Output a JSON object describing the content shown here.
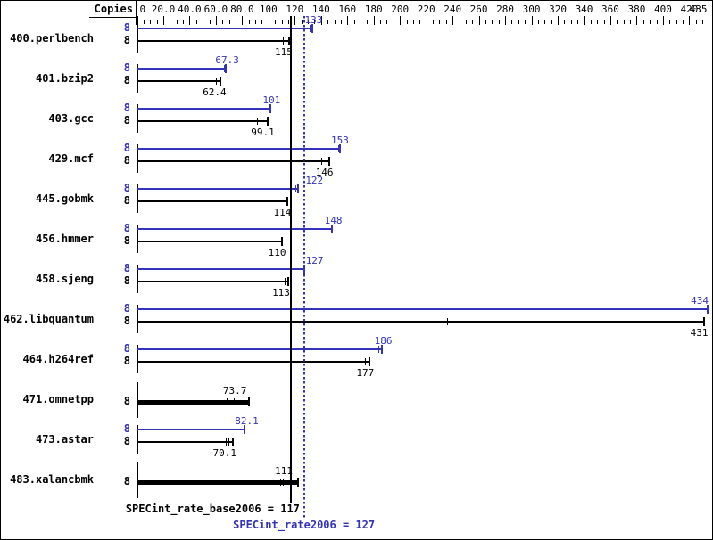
{
  "header": {
    "copies_label": "Copies"
  },
  "axis": {
    "min": 0,
    "max": 435,
    "minor_step": 5,
    "ticks": [
      {
        "v": 0,
        "t": "0"
      },
      {
        "v": 20,
        "t": "20.0"
      },
      {
        "v": 40,
        "t": "40.0"
      },
      {
        "v": 60,
        "t": "60.0"
      },
      {
        "v": 80,
        "t": "80.0"
      },
      {
        "v": 100,
        "t": "100"
      },
      {
        "v": 120,
        "t": "120"
      },
      {
        "v": 140,
        "t": "140"
      },
      {
        "v": 160,
        "t": "160"
      },
      {
        "v": 180,
        "t": "180"
      },
      {
        "v": 200,
        "t": "200"
      },
      {
        "v": 220,
        "t": "220"
      },
      {
        "v": 240,
        "t": "240"
      },
      {
        "v": 260,
        "t": "260"
      },
      {
        "v": 280,
        "t": "280"
      },
      {
        "v": 300,
        "t": "300"
      },
      {
        "v": 320,
        "t": "320"
      },
      {
        "v": 340,
        "t": "340"
      },
      {
        "v": 360,
        "t": "360"
      },
      {
        "v": 380,
        "t": "380"
      },
      {
        "v": 400,
        "t": "400"
      },
      {
        "v": 420,
        "t": "420"
      },
      {
        "v": 435,
        "t": "435"
      }
    ]
  },
  "colors": {
    "peak": "#3333bb",
    "base": "#000000"
  },
  "summary": {
    "base_label": "SPECint_rate_base2006 = 117",
    "base_value": 117,
    "peak_label": "SPECint_rate2006 = 127",
    "peak_value": 127
  },
  "benchmarks": [
    {
      "name": "400.perlbench",
      "bars": [
        {
          "kind": "peak",
          "copies": "8",
          "label": "133",
          "value": 133,
          "end": 133.5,
          "runs": [
            131
          ]
        },
        {
          "kind": "base",
          "copies": "8",
          "label": "115",
          "value": 115,
          "end": 115.5,
          "runs": [
            111
          ]
        }
      ]
    },
    {
      "name": "401.bzip2",
      "bars": [
        {
          "kind": "peak",
          "copies": "8",
          "label": "67.3",
          "value": 67.3,
          "end": 67.8,
          "runs": [
            66.5
          ]
        },
        {
          "kind": "base",
          "copies": "8",
          "label": "62.4",
          "value": 62.4,
          "end": 63.5,
          "runs": [
            60
          ]
        }
      ]
    },
    {
      "name": "403.gcc",
      "bars": [
        {
          "kind": "peak",
          "copies": "8",
          "label": "101",
          "value": 101,
          "end": 101.3,
          "runs": [
            100
          ]
        },
        {
          "kind": "base",
          "copies": "8",
          "label": "99.1",
          "value": 99.1,
          "end": 99.1,
          "runs": [
            91.5
          ]
        }
      ]
    },
    {
      "name": "429.mcf",
      "bars": [
        {
          "kind": "peak",
          "copies": "8",
          "label": "153",
          "value": 153,
          "end": 154.5,
          "runs": [
            151,
            153
          ]
        },
        {
          "kind": "base",
          "copies": "8",
          "label": "146",
          "value": 146,
          "end": 146.3,
          "runs": [
            140
          ]
        }
      ]
    },
    {
      "name": "445.gobmk",
      "bars": [
        {
          "kind": "peak",
          "copies": "8",
          "label": "122",
          "value": 122,
          "end": 122.3,
          "runs": [
            120.5
          ],
          "dx": 17
        },
        {
          "kind": "base",
          "copies": "8",
          "label": "114",
          "value": 114,
          "end": 114.3,
          "runs": []
        }
      ]
    },
    {
      "name": "456.hmmer",
      "bars": [
        {
          "kind": "peak",
          "copies": "8",
          "label": "148",
          "value": 148,
          "end": 148.3,
          "runs": []
        },
        {
          "kind": "base",
          "copies": "8",
          "label": "110",
          "value": 110,
          "end": 110.3,
          "runs": []
        }
      ]
    },
    {
      "name": "458.sjeng",
      "bars": [
        {
          "kind": "peak",
          "copies": "8",
          "label": "127",
          "value": 127,
          "end": 127.3,
          "runs": [],
          "dx": 10
        },
        {
          "kind": "base",
          "copies": "8",
          "label": "113",
          "value": 113,
          "end": 115,
          "runs": [
            112
          ]
        }
      ]
    },
    {
      "name": "462.libquantum",
      "bars": [
        {
          "kind": "peak",
          "copies": "8",
          "label": "434",
          "value": 434,
          "end": 434,
          "runs": []
        },
        {
          "kind": "base",
          "copies": "8",
          "label": "431",
          "value": 431,
          "end": 431,
          "runs": [
            236
          ]
        }
      ]
    },
    {
      "name": "464.h264ref",
      "bars": [
        {
          "kind": "peak",
          "copies": "8",
          "label": "186",
          "value": 186,
          "end": 186.3,
          "runs": [
            183.5
          ]
        },
        {
          "kind": "base",
          "copies": "8",
          "label": "177",
          "value": 177,
          "end": 177,
          "runs": [
            173.5
          ]
        }
      ]
    },
    {
      "name": "471.omnetpp",
      "bars": [
        {
          "kind": "base",
          "copies": "8",
          "label": "73.7",
          "value": 73.7,
          "end": 85,
          "runs": [
            68,
            73.6
          ],
          "thick": true,
          "label_above": true
        }
      ]
    },
    {
      "name": "473.astar",
      "bars": [
        {
          "kind": "peak",
          "copies": "8",
          "label": "82.1",
          "value": 82.1,
          "end": 82.1,
          "runs": []
        },
        {
          "kind": "base",
          "copies": "8",
          "label": "70.1",
          "value": 70.1,
          "end": 73,
          "runs": [
            67.3,
            69.5
          ]
        }
      ]
    },
    {
      "name": "483.xalancbmk",
      "bars": [
        {
          "kind": "base",
          "copies": "8",
          "label": "111",
          "value": 111,
          "end": 122.5,
          "runs": [
            109,
            111
          ],
          "thick": true,
          "label_above": true
        }
      ]
    }
  ],
  "chart_data": {
    "type": "bar",
    "orientation": "horizontal",
    "title": "",
    "xlabel": "",
    "ylabel": "Copies",
    "xlim": [
      0,
      435
    ],
    "grid": false,
    "legend_position": "none",
    "categories": [
      "400.perlbench",
      "401.bzip2",
      "403.gcc",
      "429.mcf",
      "445.gobmk",
      "456.hmmer",
      "458.sjeng",
      "462.libquantum",
      "464.h264ref",
      "471.omnetpp",
      "473.astar",
      "483.xalancbmk"
    ],
    "copies_per_benchmark": 8,
    "series": [
      {
        "name": "SPECint_rate2006 (peak)",
        "color": "#3333bb",
        "values": [
          133,
          67.3,
          101,
          153,
          122,
          148,
          127,
          434,
          186,
          null,
          82.1,
          null
        ]
      },
      {
        "name": "SPECint_rate_base2006 (base)",
        "color": "#000000",
        "values": [
          115,
          62.4,
          99.1,
          146,
          114,
          110,
          113,
          431,
          177,
          73.7,
          70.1,
          111
        ]
      }
    ],
    "reference_lines": [
      {
        "label": "SPECint_rate_base2006 = 117",
        "value": 117,
        "style": "solid",
        "color": "#000000"
      },
      {
        "label": "SPECint_rate2006 = 127",
        "value": 127,
        "style": "dotted",
        "color": "#3333bb"
      }
    ],
    "axis_tick_labels": [
      "0",
      "20.0",
      "40.0",
      "60.0",
      "80.0",
      "100",
      "120",
      "140",
      "160",
      "180",
      "200",
      "220",
      "240",
      "260",
      "280",
      "300",
      "320",
      "340",
      "360",
      "380",
      "400",
      "420",
      "435"
    ]
  }
}
